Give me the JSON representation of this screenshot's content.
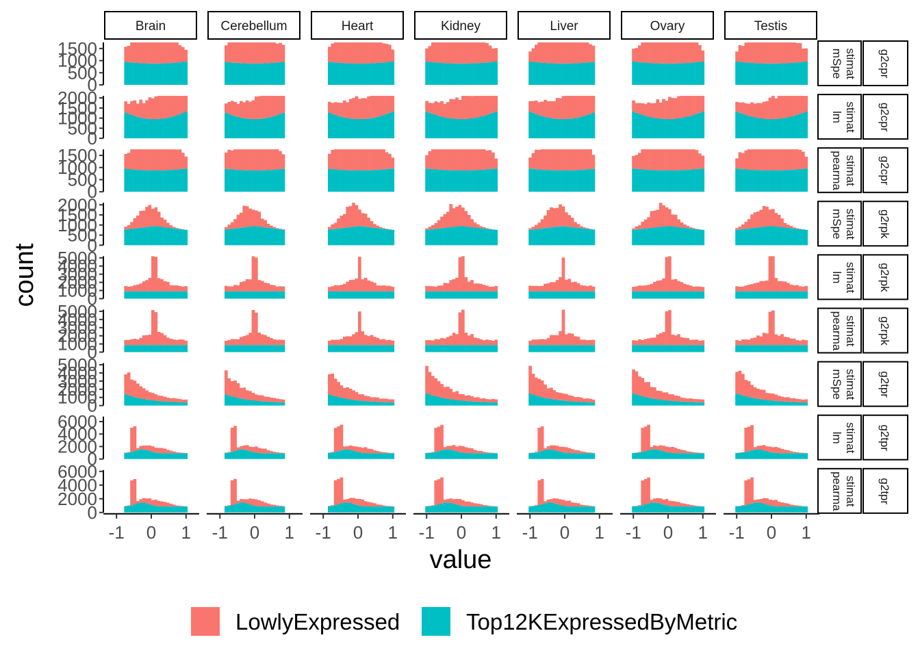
{
  "chart_data": {
    "type": "histogram",
    "stacked": true,
    "xlabel": "value",
    "ylabel": "count",
    "xlim": [
      -1.3,
      1.3
    ],
    "x_ticks": [
      -1,
      0,
      1
    ],
    "x_tick_labels": [
      "-1",
      "0",
      "1"
    ],
    "grid": false,
    "legend_position": "bottom",
    "colors": {
      "LowlyExpressed": "#F8766D",
      "Top12KExpressedByMetric": "#00BFC4"
    },
    "legend": [
      "LowlyExpressed",
      "Top12KExpressedByMetric"
    ],
    "facet_columns": [
      "Brain",
      "Cerebellum",
      "Heart",
      "Kidney",
      "Liver",
      "Ovary",
      "Testis"
    ],
    "facet_rows": [
      {
        "strip_1": "mSpe\nstimat",
        "strip_2": "g2cpr",
        "ylim": [
          0,
          1750
        ],
        "y_ticks": [
          0,
          500,
          1000,
          1500
        ],
        "y_tick_labels": [
          "0",
          "500",
          "1000",
          "1500"
        ],
        "profile": "u",
        "scale": 1600
      },
      {
        "strip_1": "lm\nstimat",
        "strip_2": "g2cpr",
        "ylim": [
          0,
          2100
        ],
        "y_ticks": [
          0,
          500,
          1000,
          1500,
          2000
        ],
        "y_tick_labels": [
          "0",
          "500",
          "1000",
          "1500",
          "2000"
        ],
        "profile": "u_tails",
        "scale": 1900
      },
      {
        "strip_1": "pearma\nstimat",
        "strip_2": "g2cpr",
        "ylim": [
          0,
          1750
        ],
        "y_ticks": [
          0,
          500,
          1000,
          1500
        ],
        "y_tick_labels": [
          "0",
          "500",
          "1000",
          "1500"
        ],
        "profile": "u",
        "scale": 1600
      },
      {
        "strip_1": "mSpe\nstimat",
        "strip_2": "g2rpk",
        "ylim": [
          0,
          2100
        ],
        "y_ticks": [
          0,
          500,
          1000,
          1500,
          2000
        ],
        "y_tick_labels": [
          "0",
          "500",
          "1000",
          "1500",
          "2000"
        ],
        "profile": "hump",
        "scale": 1900
      },
      {
        "strip_1": "lm\nstimat",
        "strip_2": "g2rpk",
        "ylim": [
          0,
          5200
        ],
        "y_ticks": [
          0,
          1000,
          2000,
          3000,
          4000,
          5000
        ],
        "y_tick_labels": [
          "0",
          "1000",
          "2000",
          "3000",
          "4000",
          "5000"
        ],
        "profile": "spike",
        "scale": 5000
      },
      {
        "strip_1": "pearma\nstimat",
        "strip_2": "g2rpk",
        "ylim": [
          0,
          5200
        ],
        "y_ticks": [
          0,
          1000,
          2000,
          3000,
          4000,
          5000
        ],
        "y_tick_labels": [
          "0",
          "1000",
          "2000",
          "3000",
          "4000",
          "5000"
        ],
        "profile": "spike",
        "scale": 4800
      },
      {
        "strip_1": "mSpe\nstimat",
        "strip_2": "g2tpr",
        "ylim": [
          0,
          5200
        ],
        "y_ticks": [
          0,
          1000,
          2000,
          3000,
          4000,
          5000
        ],
        "y_tick_labels": [
          "0",
          "1000",
          "2000",
          "3000",
          "4000",
          "5000"
        ],
        "profile": "decay",
        "scale": 4800
      },
      {
        "strip_1": "lm\nstimat",
        "strip_2": "g2tpr",
        "ylim": [
          0,
          6800
        ],
        "y_ticks": [
          0,
          2000,
          4000,
          6000
        ],
        "y_tick_labels": [
          "0",
          "2000",
          "4000",
          "6000"
        ],
        "profile": "spike_left",
        "scale": 6200
      },
      {
        "strip_1": "pearma\nstimat",
        "strip_2": "g2tpr",
        "ylim": [
          0,
          6200
        ],
        "y_ticks": [
          0,
          2000,
          4000,
          6000
        ],
        "y_tick_labels": [
          "0",
          "2000",
          "4000",
          "6000"
        ],
        "profile": "spike_left",
        "scale": 5800
      }
    ],
    "panel_shapes": {
      "Brain": {
        "center": 0.1,
        "width": 0.9
      },
      "Cerebellum": {
        "center": 0.0,
        "width": 0.9
      },
      "Heart": {
        "center": 0.05,
        "width": 0.95
      },
      "Kidney": {
        "center": 0.0,
        "width": 1.0
      },
      "Liver": {
        "center": -0.05,
        "width": 0.95
      },
      "Ovary": {
        "center": 0.0,
        "width": 1.0
      },
      "Testis": {
        "center": 0.0,
        "width": 1.0
      }
    }
  }
}
